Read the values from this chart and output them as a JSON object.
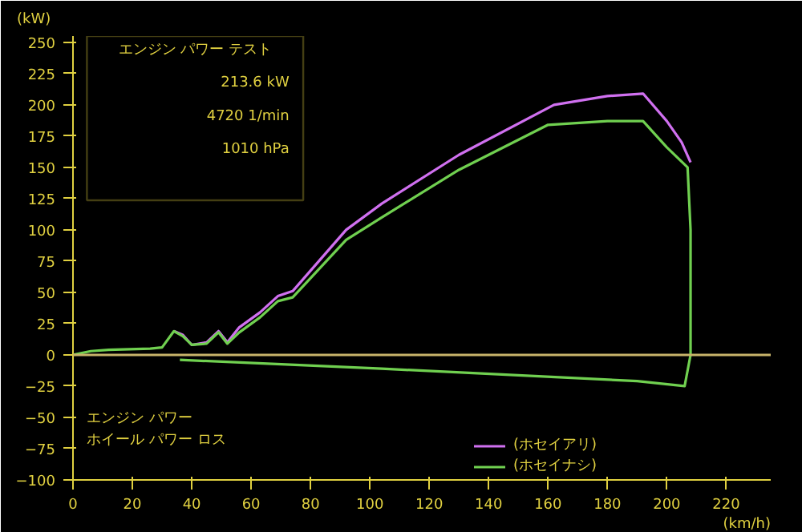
{
  "chart_data": {
    "type": "line",
    "ylabel": "(kW)",
    "xlabel": "(km/h)",
    "xlim": [
      0,
      235
    ],
    "xticks": [
      0,
      20,
      40,
      60,
      80,
      100,
      120,
      140,
      160,
      180,
      200,
      220
    ],
    "ylim": [
      -100,
      255
    ],
    "yticks": [
      -100,
      -75,
      -50,
      -25,
      0,
      25,
      50,
      75,
      100,
      125,
      150,
      175,
      200,
      225,
      250
    ],
    "grid": false,
    "legend": "bottom",
    "line_style": "solid",
    "marker": "none",
    "ref_lines": [
      {
        "axis": "y",
        "value": 0,
        "color": "#c8b46a"
      }
    ],
    "annotations": [
      "エンジン パワー テスト",
      "213.6 kW",
      "4720 1/min",
      "1010 hPa",
      "エンジン パワー",
      "ホイール パワー ロス"
    ],
    "series": [
      {
        "name": "(ホセイアリ)",
        "color": "#d070f0",
        "x": [
          34,
          37,
          40,
          45,
          49,
          52,
          56,
          63,
          69,
          74,
          92,
          104,
          130,
          162,
          180,
          192,
          200,
          205,
          208
        ],
        "values": [
          19,
          16,
          8,
          10,
          19,
          10,
          22,
          34,
          47,
          51,
          100,
          121,
          160,
          200,
          207,
          209,
          187,
          170,
          154
        ]
      },
      {
        "name": "(ホセイナシ)",
        "color": "#70d050",
        "x": [
          0,
          6,
          12,
          26,
          30,
          34,
          37,
          40,
          45,
          49,
          52,
          56,
          63,
          69,
          74,
          92,
          104,
          130,
          160,
          180,
          192,
          200,
          207,
          208,
          208,
          206,
          190,
          104,
          36
        ],
        "values": [
          0,
          3,
          4,
          5,
          6,
          19,
          15,
          8,
          9,
          18,
          9,
          18,
          30,
          43,
          46,
          92,
          110,
          148,
          184,
          187,
          187,
          166,
          150,
          100,
          0,
          -25,
          -21,
          -11,
          -4
        ]
      }
    ]
  }
}
